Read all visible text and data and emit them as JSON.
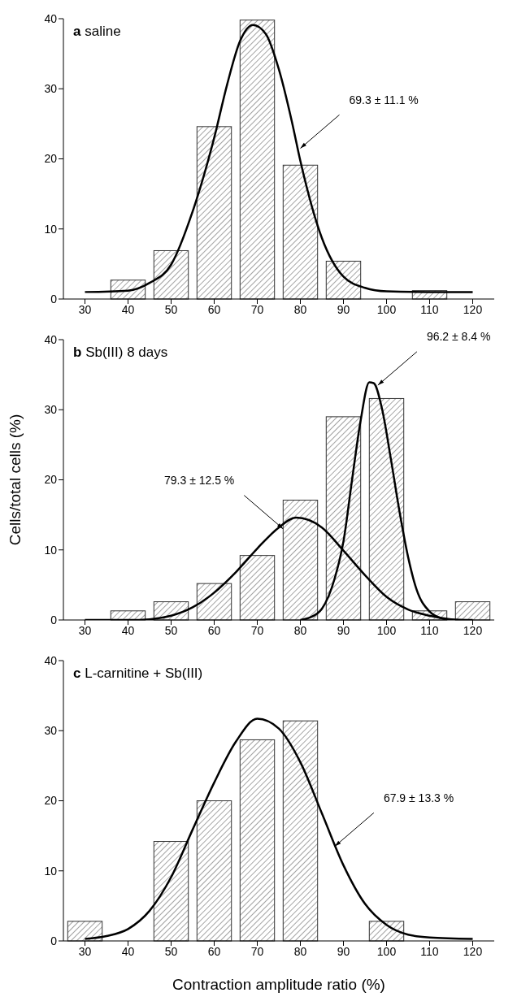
{
  "chart_data": [
    {
      "type": "histogram",
      "title": "a saline",
      "xlim": [
        25,
        125
      ],
      "xticks": [
        30,
        40,
        50,
        60,
        70,
        80,
        90,
        100,
        110,
        120
      ],
      "ylim": [
        0,
        40
      ],
      "yticks": [
        0,
        10,
        20,
        30,
        40
      ],
      "series": [
        {
          "type": "histogram",
          "color": "#333333",
          "bins": [
            35,
            45,
            55,
            65,
            75,
            85,
            95,
            105,
            115
          ],
          "values": [
            2.7,
            6.9,
            24.6,
            39.8,
            19.1,
            5.4,
            0,
            1.2
          ]
        },
        {
          "type": "line",
          "color": "#000000",
          "x": [
            30,
            40,
            45,
            50,
            55,
            60,
            63,
            66,
            69,
            72,
            75,
            78,
            80,
            85,
            90,
            95,
            100,
            110,
            120
          ],
          "values": [
            1,
            1.2,
            2.3,
            4.9,
            12.5,
            23,
            30.6,
            36.8,
            39.1,
            37.8,
            32.8,
            25.4,
            19.7,
            8.7,
            3.2,
            1.6,
            1.1,
            1,
            1
          ]
        }
      ],
      "annotations": [
        {
          "text": "69.3 ± 11.1 %",
          "x": 80,
          "y": 21.5
        }
      ]
    },
    {
      "type": "histogram",
      "title": "b Sb(III) 8 days",
      "ylabel": "Cells/total cells (%)",
      "xlim": [
        25,
        125
      ],
      "xticks": [
        30,
        40,
        50,
        60,
        70,
        80,
        90,
        100,
        110,
        120
      ],
      "ylim": [
        0,
        40
      ],
      "yticks": [
        0,
        10,
        20,
        30,
        40
      ],
      "series": [
        {
          "type": "histogram",
          "color": "#333333",
          "bins": [
            35,
            45,
            55,
            65,
            75,
            85,
            95,
            105,
            115,
            125
          ],
          "values": [
            1.3,
            2.6,
            5.2,
            9.2,
            17.1,
            29,
            31.6,
            1.3,
            2.6
          ]
        },
        {
          "type": "line",
          "color": "#000000",
          "x": [
            30,
            40,
            45,
            50,
            55,
            60,
            65,
            70,
            75,
            79,
            85,
            90,
            95,
            100,
            105,
            110,
            115,
            120
          ],
          "values": [
            0,
            0,
            0.1,
            0.6,
            1.8,
            3.9,
            6.8,
            10.2,
            13.2,
            14.6,
            13.2,
            9.9,
            6.4,
            3.3,
            1.5,
            0.6,
            0.1,
            0
          ]
        },
        {
          "type": "line",
          "color": "#000000",
          "x": [
            80,
            82,
            85,
            88,
            90,
            92,
            94,
            96,
            97,
            99,
            101,
            103,
            105,
            107,
            110,
            113,
            115
          ],
          "values": [
            0,
            0.3,
            1.6,
            6,
            11.2,
            20,
            28.5,
            33.9,
            33.8,
            30,
            23,
            15.5,
            9,
            4.3,
            1.2,
            0.2,
            0
          ]
        }
      ],
      "annotations": [
        {
          "text": "96.2 ± 8.4 %",
          "x": 98,
          "y": 33.5
        },
        {
          "text": "79.3 ± 12.5 %",
          "x": 76,
          "y": 13
        }
      ]
    },
    {
      "type": "histogram",
      "title": "c L-carnitine + Sb(III)",
      "xlabel": "Contraction amplitude ratio (%)",
      "xlim": [
        25,
        125
      ],
      "xticks": [
        30,
        40,
        50,
        60,
        70,
        80,
        90,
        100,
        110,
        120
      ],
      "ylim": [
        0,
        40
      ],
      "yticks": [
        0,
        10,
        20,
        30,
        40
      ],
      "series": [
        {
          "type": "histogram",
          "color": "#333333",
          "bins": [
            25,
            35,
            45,
            55,
            65,
            75,
            85,
            95,
            105
          ],
          "values": [
            2.8,
            0,
            14.2,
            20,
            28.7,
            31.4,
            0,
            2.8
          ]
        },
        {
          "type": "line",
          "color": "#000000",
          "x": [
            30,
            35,
            40,
            45,
            50,
            55,
            60,
            65,
            70,
            75,
            80,
            85,
            90,
            95,
            100,
            105,
            110,
            120
          ],
          "values": [
            0.3,
            0.7,
            1.7,
            4.3,
            9.1,
            15.9,
            22.6,
            28.4,
            31.7,
            30.3,
            25.5,
            18.2,
            10.8,
            5.3,
            2.3,
            0.9,
            0.5,
            0.3
          ]
        }
      ],
      "annotations": [
        {
          "text": "67.9 ± 13.3 %",
          "x": 88,
          "y": 13.5
        }
      ]
    }
  ]
}
